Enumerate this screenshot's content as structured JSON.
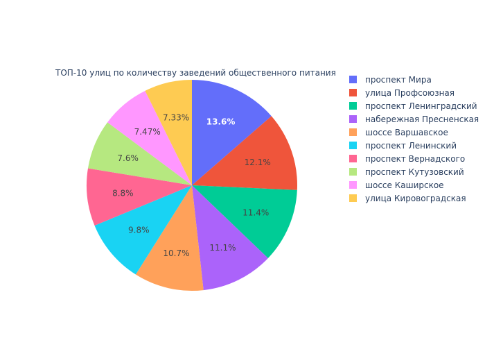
{
  "chart_data": {
    "type": "pie",
    "title": "ТОП-10 улиц по количеству заведений общественного питания",
    "labels": [
      "проспект Мира",
      "улица Профсоюзная",
      "проспект Ленинградский",
      "набережная Пресненская",
      "шоссе Варшавское",
      "проспект Ленинский",
      "проспект Вернадского",
      "проспект Кутузовский",
      "шоссе Каширское",
      "улица Кировоградская"
    ],
    "values": [
      13.6,
      12.1,
      11.4,
      11.1,
      10.7,
      9.8,
      8.8,
      7.6,
      7.47,
      7.33
    ],
    "text_labels": [
      "13.6%",
      "12.1%",
      "11.4%",
      "11.1%",
      "10.7%",
      "9.8%",
      "8.8%",
      "7.6%",
      "7.47%",
      "7.33%"
    ],
    "legend_order": [
      0,
      1,
      2,
      3,
      4,
      5,
      6,
      7,
      8,
      9
    ],
    "legend_position": "right",
    "colors": [
      "#636efa",
      "#EF553B",
      "#00cc96",
      "#ab63fa",
      "#FFA15A",
      "#19d3f3",
      "#FF6692",
      "#B6E880",
      "#FF97FF",
      "#FECB52"
    ],
    "label_colors": [
      "#ffffff",
      "#444444",
      "#444444",
      "#444444",
      "#444444",
      "#444444",
      "#444444",
      "#444444",
      "#444444",
      "#444444"
    ]
  }
}
